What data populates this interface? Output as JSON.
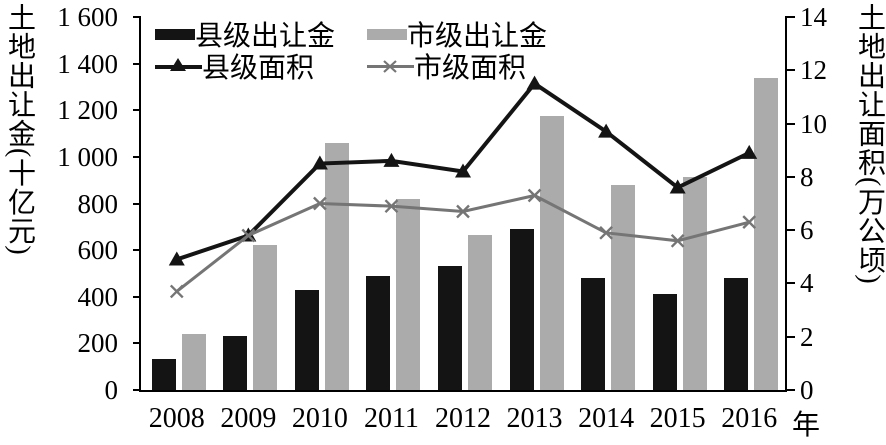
{
  "chart_data": {
    "type": "bar",
    "subtype": "combo-bar-line-dual-axis",
    "categories": [
      "2008",
      "2009",
      "2010",
      "2011",
      "2012",
      "2013",
      "2014",
      "2015",
      "2016"
    ],
    "bar_series": [
      {
        "name": "县级出让金",
        "axis": "left",
        "color": "#141414",
        "values": [
          135,
          230,
          430,
          490,
          530,
          690,
          480,
          410,
          480
        ]
      },
      {
        "name": "市级出让金",
        "axis": "left",
        "color": "#ababab",
        "values": [
          240,
          620,
          1060,
          820,
          665,
          1175,
          880,
          915,
          1340
        ]
      }
    ],
    "line_series": [
      {
        "name": "县级面积",
        "axis": "right",
        "color": "#141414",
        "marker": "triangle",
        "values": [
          4.9,
          5.8,
          8.5,
          8.6,
          8.2,
          11.5,
          9.7,
          7.6,
          8.9
        ]
      },
      {
        "name": "市级面积",
        "axis": "right",
        "color": "#757575",
        "marker": "x",
        "values": [
          3.7,
          5.8,
          7.0,
          6.9,
          6.7,
          7.3,
          5.9,
          5.6,
          6.3
        ]
      }
    ],
    "left_axis": {
      "title": "土地出让金(十亿元)",
      "range": [
        0,
        1600
      ],
      "tick_values": [
        1600,
        1400,
        1200,
        1000,
        800,
        600,
        400,
        200,
        0
      ],
      "tick_labels": [
        "1 600",
        "1 400",
        "1 200",
        "1 000",
        "800",
        "600",
        "400",
        "200",
        "0"
      ]
    },
    "right_axis": {
      "title": "土地出让面积(万公顷)",
      "range": [
        0,
        14
      ],
      "tick_values": [
        14,
        12,
        10,
        8,
        6,
        4,
        2,
        0
      ],
      "tick_labels": [
        "14",
        "12",
        "10",
        "8",
        "6",
        "4",
        "2",
        "0"
      ]
    },
    "x_axis": {
      "unit_label": "年"
    },
    "legend_position": "top-left-inside",
    "grid": false,
    "background": "#ffffff"
  }
}
